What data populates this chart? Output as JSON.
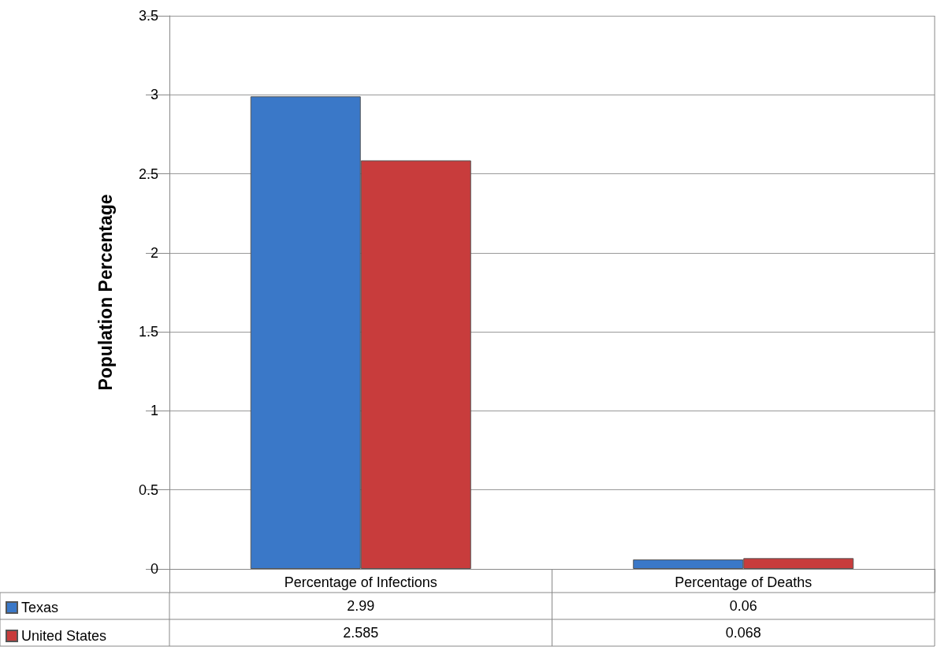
{
  "chart_data": {
    "type": "bar",
    "ylabel": "Population Percentage",
    "categories": [
      "Percentage of Infections",
      "Percentage of Deaths"
    ],
    "series": [
      {
        "name": "Texas",
        "color": "#3a78c8",
        "values": [
          2.99,
          0.06
        ]
      },
      {
        "name": "United States",
        "color": "#c83c3c",
        "values": [
          2.585,
          0.068
        ]
      }
    ],
    "ylim": [
      0,
      3.5
    ],
    "yticks": [
      0,
      0.5,
      1,
      1.5,
      2,
      2.5,
      3,
      3.5
    ],
    "grid": "y",
    "legend": "bottom left",
    "data_labels": true
  }
}
